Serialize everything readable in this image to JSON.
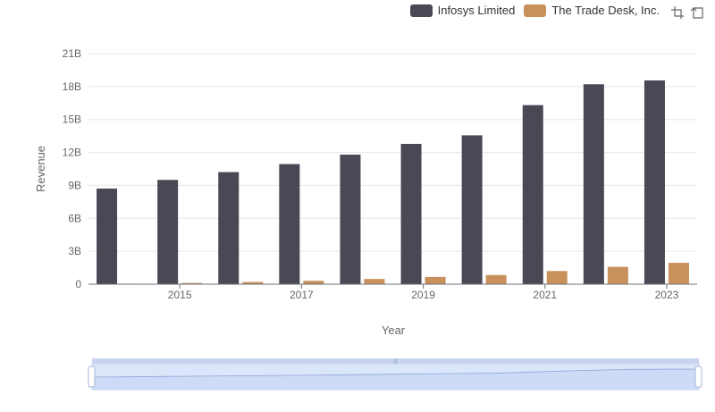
{
  "legend": {
    "series_1": "Infosys Limited",
    "series_2": "The Trade Desk, Inc."
  },
  "toolbox": {
    "zoom_icon": "zoom-select-icon",
    "reset_icon": "zoom-reset-icon"
  },
  "colors": {
    "infosys": "#4a4854",
    "tradedesk": "#c8915c",
    "grid": "#e6e6e6",
    "slider_fill": "#dce6fb",
    "slider_border": "#c9d5ef"
  },
  "chart_data": {
    "type": "bar",
    "xlabel": "Year",
    "ylabel": "Revenue",
    "x_ticks": [
      "2015",
      "2017",
      "2019",
      "2021",
      "2023"
    ],
    "y_ticks": [
      "0",
      "3B",
      "6B",
      "9B",
      "12B",
      "15B",
      "18B",
      "21B"
    ],
    "ylim": [
      0,
      21000000000
    ],
    "categories": [
      "2014",
      "2015",
      "2016",
      "2017",
      "2018",
      "2019",
      "2020",
      "2021",
      "2022",
      "2023"
    ],
    "series": [
      {
        "name": "Infosys Limited",
        "values": [
          8710000000,
          9500000000,
          10210000000,
          10940000000,
          11800000000,
          12780000000,
          13560000000,
          16310000000,
          18210000000,
          18560000000
        ]
      },
      {
        "name": "The Trade Desk, Inc.",
        "values": [
          45000000,
          114000000,
          203000000,
          308000000,
          477000000,
          661000000,
          836000000,
          1200000000,
          1580000000,
          1950000000
        ]
      }
    ],
    "grid": true,
    "legend_position": "top-right",
    "data_zoom": {
      "start": 0,
      "end": 100
    }
  }
}
